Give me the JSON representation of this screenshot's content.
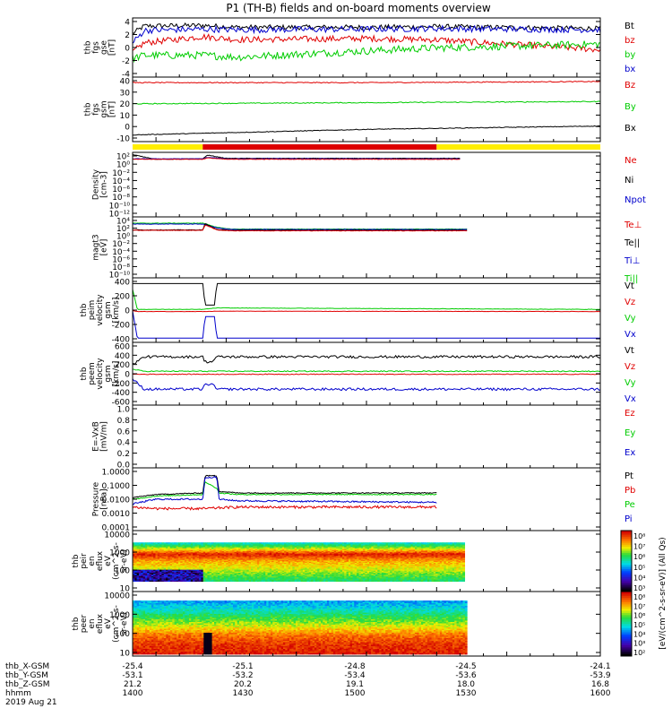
{
  "title": "P1 (TH-B) fields and on-board moments overview",
  "colors": {
    "black": "#000000",
    "red": "#e00000",
    "green": "#00cc00",
    "blue": "#0000cc",
    "yellow": "#ffee00",
    "bar_red": "#dd0000"
  },
  "chart_data": [
    {
      "id": "fgs_gse",
      "type": "line",
      "ylabel": [
        "thb",
        "fgs",
        "gse",
        "[nT]"
      ],
      "yticks": [
        "4",
        "2",
        "0",
        "-2",
        "-4"
      ],
      "ylim": [
        -5,
        4.5
      ],
      "legend": [
        {
          "name": "Bt",
          "color": "#000000"
        },
        {
          "name": "bz",
          "color": "#e00000"
        },
        {
          "name": "by",
          "color": "#00cc00"
        },
        {
          "name": "bx",
          "color": "#0000cc"
        }
      ],
      "series": [
        {
          "name": "Bt",
          "color": "#000000",
          "x": [
            1400,
            1405,
            1430,
            1445,
            1500,
            1530,
            1600
          ],
          "y": [
            2.0,
            3.2,
            3.3,
            3.0,
            3.0,
            3.1,
            2.8
          ],
          "noise": 0.4
        },
        {
          "name": "bz",
          "color": "#e00000",
          "x": [
            1400,
            1405,
            1430,
            1445,
            1500,
            1530,
            1600
          ],
          "y": [
            -1.0,
            0.5,
            1.5,
            1.0,
            1.2,
            1.0,
            -0.6
          ],
          "noise": 0.5
        },
        {
          "name": "by",
          "color": "#00cc00",
          "x": [
            1400,
            1405,
            1430,
            1445,
            1500,
            1530,
            1600
          ],
          "y": [
            -2.0,
            -1.5,
            -1.5,
            -1.8,
            -0.8,
            -0.3,
            0.3
          ],
          "noise": 0.6
        },
        {
          "name": "bx",
          "color": "#0000cc",
          "x": [
            1400,
            1405,
            1430,
            1445,
            1500,
            1530,
            1600
          ],
          "y": [
            0.5,
            2.5,
            2.7,
            2.6,
            2.7,
            2.8,
            2.6
          ],
          "noise": 0.5
        }
      ]
    },
    {
      "id": "fgs_gsm",
      "type": "line",
      "ylabel": [
        "thb",
        "fgs",
        "gsm",
        "[nT]"
      ],
      "yticks": [
        "40",
        "30",
        "20",
        "10",
        "0",
        "-10"
      ],
      "ylim": [
        -16,
        42
      ],
      "legend": [
        {
          "name": "Bz",
          "color": "#e00000"
        },
        {
          "name": "By",
          "color": "#00cc00"
        },
        {
          "name": "Bx",
          "color": "#000000"
        }
      ],
      "series": [
        {
          "name": "Bz",
          "color": "#e00000",
          "x": [
            1400,
            1500,
            1600
          ],
          "y": [
            37,
            37,
            38
          ],
          "noise": 0.4
        },
        {
          "name": "By",
          "color": "#00cc00",
          "x": [
            1400,
            1500,
            1600
          ],
          "y": [
            18,
            19,
            20
          ],
          "noise": 0.4
        },
        {
          "name": "Bx",
          "color": "#000000",
          "x": [
            1400,
            1500,
            1600
          ],
          "y": [
            -10,
            -5,
            -2
          ],
          "noise": 0.3
        }
      ]
    },
    {
      "id": "density",
      "type": "line",
      "ylabel": [
        "Density",
        "[cm-3]"
      ],
      "yticks": [
        "10²",
        "10⁰",
        "10⁻²",
        "10⁻⁴",
        "10⁻⁶",
        "10⁻⁸",
        "10⁻¹⁰",
        "10⁻¹²"
      ],
      "ylim": [
        -12,
        2
      ],
      "log": true,
      "legend": [
        {
          "name": "Ne",
          "color": "#e00000"
        },
        {
          "name": "Ni",
          "color": "#000000"
        },
        {
          "name": "Npot",
          "color": "#0000cc"
        }
      ],
      "series": [
        {
          "name": "Ni",
          "color": "#000000",
          "x": [
            1400,
            1410,
            1430,
            1432,
            1440,
            1540
          ],
          "y": [
            1.5,
            0.5,
            0.6,
            1.4,
            0.7,
            0.7
          ],
          "noise": 0.05
        },
        {
          "name": "Npot",
          "color": "#0000cc",
          "x": [
            1400,
            1410,
            1430,
            1432,
            1440,
            1540
          ],
          "y": [
            0.6,
            0.6,
            0.6,
            0.9,
            0.6,
            0.6
          ],
          "noise": 0.05
        },
        {
          "name": "Ne",
          "color": "#e00000",
          "x": [
            1400,
            1410,
            1430,
            1432,
            1440,
            1540
          ],
          "y": [
            0.5,
            0.5,
            0.5,
            0.8,
            0.5,
            0.5
          ],
          "noise": 0.05
        }
      ]
    },
    {
      "id": "temperature",
      "type": "line",
      "ylabel": [
        "magt3",
        "[eV]"
      ],
      "yticks": [
        "10⁴",
        "10²",
        "10⁰",
        "10⁻²",
        "10⁻⁴",
        "10⁻⁶",
        "10⁻⁸",
        "10⁻¹⁰"
      ],
      "ylim": [
        -10,
        4.5
      ],
      "log": true,
      "legend": [
        {
          "name": "Te⊥",
          "color": "#e00000"
        },
        {
          "name": "Te||",
          "color": "#000000"
        },
        {
          "name": "Ti⊥",
          "color": "#0000cc"
        },
        {
          "name": "Ti||",
          "color": "#00cc00"
        }
      ],
      "series": [
        {
          "name": "Ti||",
          "color": "#00cc00",
          "x": [
            1400,
            1430,
            1431,
            1436,
            1442,
            1543
          ],
          "y": [
            3.0,
            3.0,
            2.9,
            2.0,
            1.6,
            1.6
          ],
          "noise": 0.05
        },
        {
          "name": "Ti⊥",
          "color": "#0000cc",
          "x": [
            1400,
            1430,
            1431,
            1436,
            1442,
            1543
          ],
          "y": [
            2.8,
            2.8,
            2.7,
            1.9,
            1.5,
            1.5
          ],
          "noise": 0.05
        },
        {
          "name": "Te||",
          "color": "#000000",
          "x": [
            1400,
            1430,
            1431,
            1436,
            1442,
            1543
          ],
          "y": [
            1.4,
            1.4,
            2.9,
            1.5,
            1.3,
            1.3
          ],
          "noise": 0.05
        },
        {
          "name": "Te⊥",
          "color": "#e00000",
          "x": [
            1400,
            1430,
            1431,
            1436,
            1442,
            1543
          ],
          "y": [
            1.3,
            1.3,
            2.6,
            1.4,
            1.2,
            1.2
          ],
          "noise": 0.05
        }
      ]
    },
    {
      "id": "peim_vel",
      "type": "line",
      "ylabel": [
        "thb",
        "peim",
        "velocity",
        "gsm",
        "[km/s]"
      ],
      "yticks": [
        "400",
        "200",
        "0",
        "-200",
        "-400"
      ],
      "ylim": [
        -440,
        460
      ],
      "legend": [
        {
          "name": "Vt",
          "color": "#000000"
        },
        {
          "name": "Vz",
          "color": "#e00000"
        },
        {
          "name": "Vy",
          "color": "#00cc00"
        },
        {
          "name": "Vx",
          "color": "#0000cc"
        }
      ],
      "series": [
        {
          "name": "Vt",
          "color": "#000000",
          "x": [
            1400,
            1402,
            1430,
            1431,
            1435,
            1436,
            1437,
            1600
          ],
          "y": [
            380,
            380,
            380,
            80,
            80,
            380,
            380,
            380
          ],
          "noise": 0
        },
        {
          "name": "Vz",
          "color": "#e00000",
          "x": [
            1400,
            1402,
            1430,
            1436,
            1600
          ],
          "y": [
            0,
            -10,
            -10,
            -5,
            -10
          ],
          "noise": 2
        },
        {
          "name": "Vy",
          "color": "#00cc00",
          "x": [
            1400,
            1402,
            1430,
            1436,
            1600
          ],
          "y": [
            300,
            20,
            20,
            40,
            20
          ],
          "noise": 3
        },
        {
          "name": "Vx",
          "color": "#0000cc",
          "x": [
            1400,
            1402,
            1430,
            1431,
            1435,
            1436,
            1437,
            1600
          ],
          "y": [
            0,
            -380,
            -380,
            -80,
            -80,
            -380,
            -380,
            -380
          ],
          "noise": 0
        }
      ]
    },
    {
      "id": "peem_vel",
      "type": "line",
      "ylabel": [
        "thb",
        "peem",
        "velocity",
        "gsm",
        "[km/s]"
      ],
      "yticks": [
        "600",
        "400",
        "200",
        "0",
        "-200",
        "-400",
        "-600"
      ],
      "ylim": [
        -620,
        640
      ],
      "legend": [
        {
          "name": "Vt",
          "color": "#000000"
        },
        {
          "name": "Vz",
          "color": "#e00000"
        },
        {
          "name": "Vy",
          "color": "#00cc00"
        },
        {
          "name": "Vx",
          "color": "#0000cc"
        }
      ],
      "series": [
        {
          "name": "Vt",
          "color": "#000000",
          "x": [
            1400,
            1405,
            1430,
            1431,
            1434,
            1436,
            1437,
            1600
          ],
          "y": [
            200,
            350,
            350,
            250,
            250,
            350,
            350,
            350
          ],
          "noise": 25
        },
        {
          "name": "Vz",
          "color": "#e00000",
          "x": [
            1400,
            1430,
            1600
          ],
          "y": [
            0,
            0,
            0
          ],
          "noise": 8
        },
        {
          "name": "Vy",
          "color": "#00cc00",
          "x": [
            1400,
            1405,
            1430,
            1600
          ],
          "y": [
            100,
            60,
            60,
            60
          ],
          "noise": 10
        },
        {
          "name": "Vx",
          "color": "#0000cc",
          "x": [
            1400,
            1405,
            1430,
            1431,
            1434,
            1436,
            1437,
            1600
          ],
          "y": [
            -100,
            -300,
            -300,
            -200,
            -200,
            -300,
            -300,
            -300
          ],
          "noise": 25
        }
      ]
    },
    {
      "id": "efield",
      "type": "line",
      "ylabel": [
        "E=-VxB",
        "[mV/m]"
      ],
      "yticks": [
        "1.0",
        "0.8",
        "0.6",
        "0.4",
        "0.2",
        "0.0"
      ],
      "ylim": [
        0,
        1
      ],
      "legend": [
        {
          "name": "Ez",
          "color": "#e00000"
        },
        {
          "name": "Ey",
          "color": "#00cc00"
        },
        {
          "name": "Ex",
          "color": "#0000cc"
        }
      ],
      "series": []
    },
    {
      "id": "pressure",
      "type": "line",
      "ylabel": [
        "Pressure",
        "[nPa]"
      ],
      "yticks": [
        "1.0000",
        "0.1000",
        "0.0100",
        "0.0010",
        "0.0001"
      ],
      "ylim": [
        -4,
        0
      ],
      "log": true,
      "legend": [
        {
          "name": "Pt",
          "color": "#000000"
        },
        {
          "name": "Pb",
          "color": "#e00000"
        },
        {
          "name": "Pe",
          "color": "#00cc00"
        },
        {
          "name": "Pi",
          "color": "#0000cc"
        }
      ],
      "series": [
        {
          "name": "Pt",
          "color": "#000000",
          "x": [
            1400,
            1410,
            1430,
            1431,
            1436,
            1437,
            1445,
            1530
          ],
          "y": [
            -1.9,
            -1.7,
            -1.6,
            -0.5,
            -0.5,
            -1.5,
            -1.6,
            -1.6
          ],
          "noise": 0.03
        },
        {
          "name": "Pe",
          "color": "#00cc00",
          "x": [
            1400,
            1410,
            1430,
            1431,
            1436,
            1437,
            1445,
            1530
          ],
          "y": [
            -2.0,
            -1.8,
            -1.7,
            -0.9,
            -1.3,
            -1.6,
            -1.7,
            -1.7
          ],
          "noise": 0.03
        },
        {
          "name": "Pi",
          "color": "#0000cc",
          "x": [
            1400,
            1410,
            1430,
            1431,
            1436,
            1437,
            1445,
            1530
          ],
          "y": [
            -2.3,
            -2.0,
            -2.0,
            -0.6,
            -0.6,
            -2.0,
            -2.1,
            -2.2
          ],
          "noise": 0.05
        },
        {
          "name": "Pb",
          "color": "#e00000",
          "x": [
            1400,
            1410,
            1430,
            1445,
            1530
          ],
          "y": [
            -2.5,
            -2.6,
            -2.6,
            -2.5,
            -2.5
          ],
          "noise": 0.08
        }
      ]
    },
    {
      "id": "peir_spec",
      "type": "heatmap",
      "ylabel": [
        "thb",
        "peir",
        "en",
        "eflux",
        "eV",
        "(cm^2-s-",
        "sr-eV)"
      ],
      "yticks": [
        "10000",
        "1000",
        "100",
        "10"
      ],
      "ylim": [
        0.7,
        4.3
      ],
      "log": true,
      "x_start": 1400,
      "x_end": 1542,
      "data_ylim": [
        1.3,
        3.6
      ],
      "colorbar_ticks": [
        "10⁸",
        "10⁷",
        "10⁶",
        "10⁵",
        "10⁴",
        "10³"
      ],
      "profile": [
        {
          "y": 1.3,
          "level": 0.55
        },
        {
          "y": 2.0,
          "level": 0.7
        },
        {
          "y": 2.5,
          "level": 0.8
        },
        {
          "y": 2.9,
          "level": 0.97
        },
        {
          "y": 3.3,
          "level": 0.65
        },
        {
          "y": 3.6,
          "level": 0.45
        }
      ]
    },
    {
      "id": "peer_spec",
      "type": "heatmap",
      "ylabel": [
        "thb",
        "peer",
        "en",
        "eflux",
        "eV",
        "(cm^2-s-",
        "sr-eV)"
      ],
      "yticks": [
        "10000",
        "1000",
        "100",
        "10"
      ],
      "ylim": [
        0.7,
        4.3
      ],
      "log": true,
      "x_start": 1400,
      "x_end": 1543,
      "data_ylim": [
        0.8,
        3.8
      ],
      "colorbar_ticks": [
        "10⁸",
        "10⁷",
        "10⁶",
        "10⁵",
        "10⁴",
        "10³",
        "10²"
      ],
      "profile": [
        {
          "y": 0.8,
          "level": 0.97
        },
        {
          "y": 1.4,
          "level": 0.93
        },
        {
          "y": 1.9,
          "level": 0.85
        },
        {
          "y": 2.4,
          "level": 0.7
        },
        {
          "y": 2.9,
          "level": 0.58
        },
        {
          "y": 3.4,
          "level": 0.45
        },
        {
          "y": 3.8,
          "level": 0.38
        }
      ]
    }
  ],
  "colorbar_label": "[eV/(cm^2-s-sr-eV)] (All Qs)",
  "yellow_bar_segments": [
    {
      "from": 1400,
      "to": 1430,
      "color": "yellow"
    },
    {
      "from": 1430,
      "to": 1530,
      "color": "red"
    },
    {
      "from": 1530,
      "to": 1600,
      "color": "yellow"
    }
  ],
  "xaxis": {
    "xlim": [
      1400,
      1600
    ],
    "rows": [
      {
        "label": "thb_X-GSM",
        "values": [
          "-25.4",
          "-25.1",
          "-24.8",
          "-24.5",
          "-24.1"
        ]
      },
      {
        "label": "thb_Y-GSM",
        "values": [
          "-53.1",
          "-53.2",
          "-53.4",
          "-53.6",
          "-53.9"
        ]
      },
      {
        "label": "thb_Z-GSM",
        "values": [
          "21.2",
          "20.2",
          "19.1",
          "18.0",
          "16.8"
        ]
      },
      {
        "label": "hhmm",
        "values": [
          "1400",
          "1430",
          "1500",
          "1530",
          "1600"
        ]
      }
    ],
    "date": "2019 Aug 21"
  }
}
